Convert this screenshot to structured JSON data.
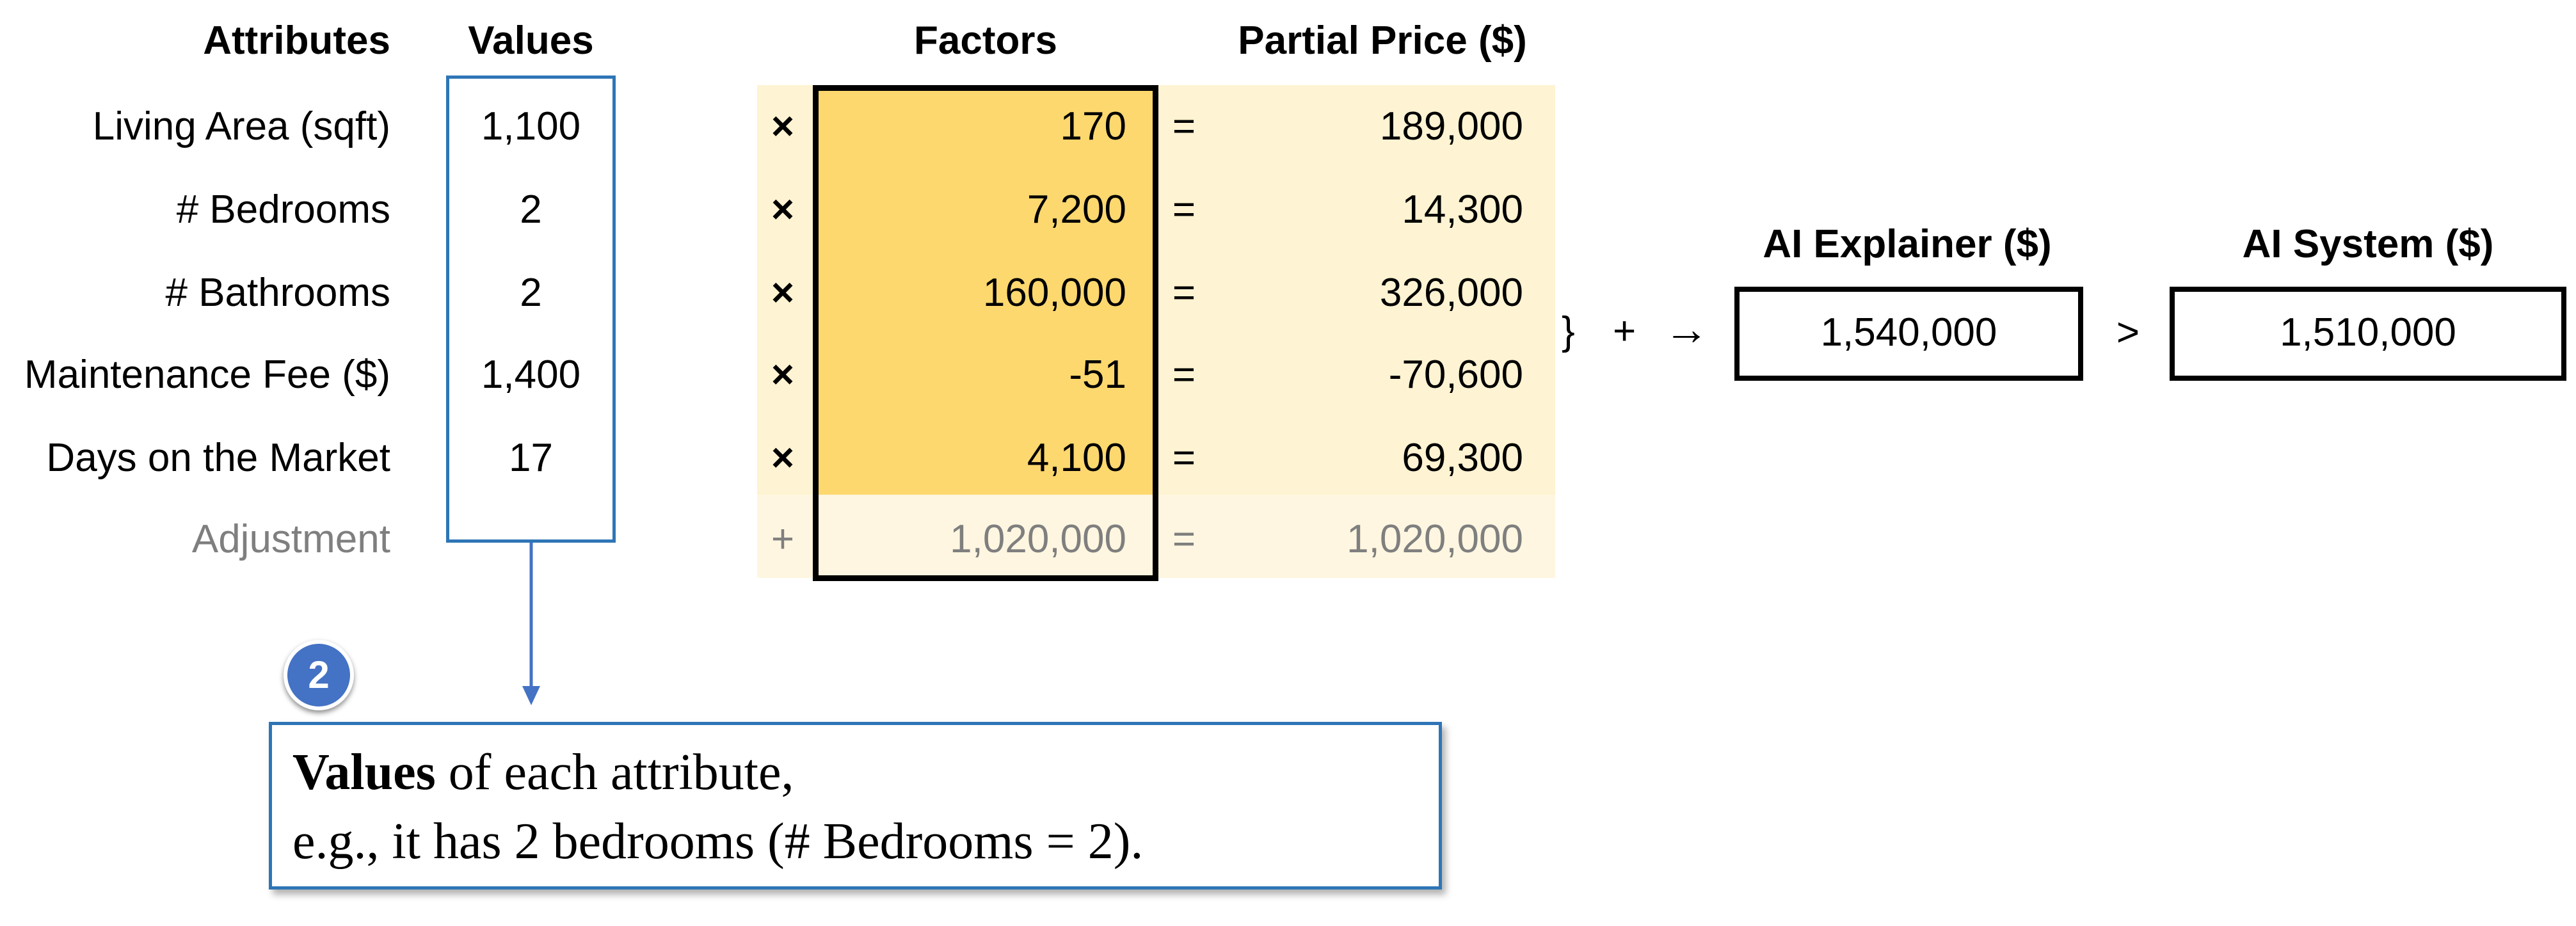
{
  "headers": {
    "attributes": "Attributes",
    "values": "Values",
    "factors": "Factors",
    "partial_price": "Partial Price ($)",
    "explainer": "AI Explainer ($)",
    "system": "AI System ($)"
  },
  "rows": [
    {
      "attribute": "Living Area (sqft)",
      "value": "1,100",
      "op": "×",
      "factor": "170",
      "eq": "=",
      "partial": "189,000"
    },
    {
      "attribute": "# Bedrooms",
      "value": "2",
      "op": "×",
      "factor": "7,200",
      "eq": "=",
      "partial": "14,300"
    },
    {
      "attribute": "# Bathrooms",
      "value": "2",
      "op": "×",
      "factor": "160,000",
      "eq": "=",
      "partial": "326,000"
    },
    {
      "attribute": "Maintenance Fee ($)",
      "value": "1,400",
      "op": "×",
      "factor": "-51",
      "eq": "=",
      "partial": "-70,600"
    },
    {
      "attribute": "Days on the Market",
      "value": "17",
      "op": "×",
      "factor": "4,100",
      "eq": "=",
      "partial": "69,300"
    }
  ],
  "adjustment": {
    "attribute": "Adjustment",
    "op": "+",
    "factor": "1,020,000",
    "eq": "=",
    "partial": "1,020,000"
  },
  "sum": {
    "brace": "}",
    "plus": "+",
    "arrow": "→"
  },
  "explainer_value": "1,540,000",
  "comparison": ">",
  "system_value": "1,510,000",
  "callout": {
    "badge": "2",
    "bold": "Values",
    "line1_rest": " of each attribute,",
    "line2": "e.g., it has 2 bedrooms (# Bedrooms = 2)."
  },
  "colors": {
    "factor_fill": "#fdd86e",
    "partial_fill": "#fef3d2",
    "adjust_fill": "#fef6e0",
    "blue": "#2e75b6",
    "badge": "#4472c4"
  }
}
